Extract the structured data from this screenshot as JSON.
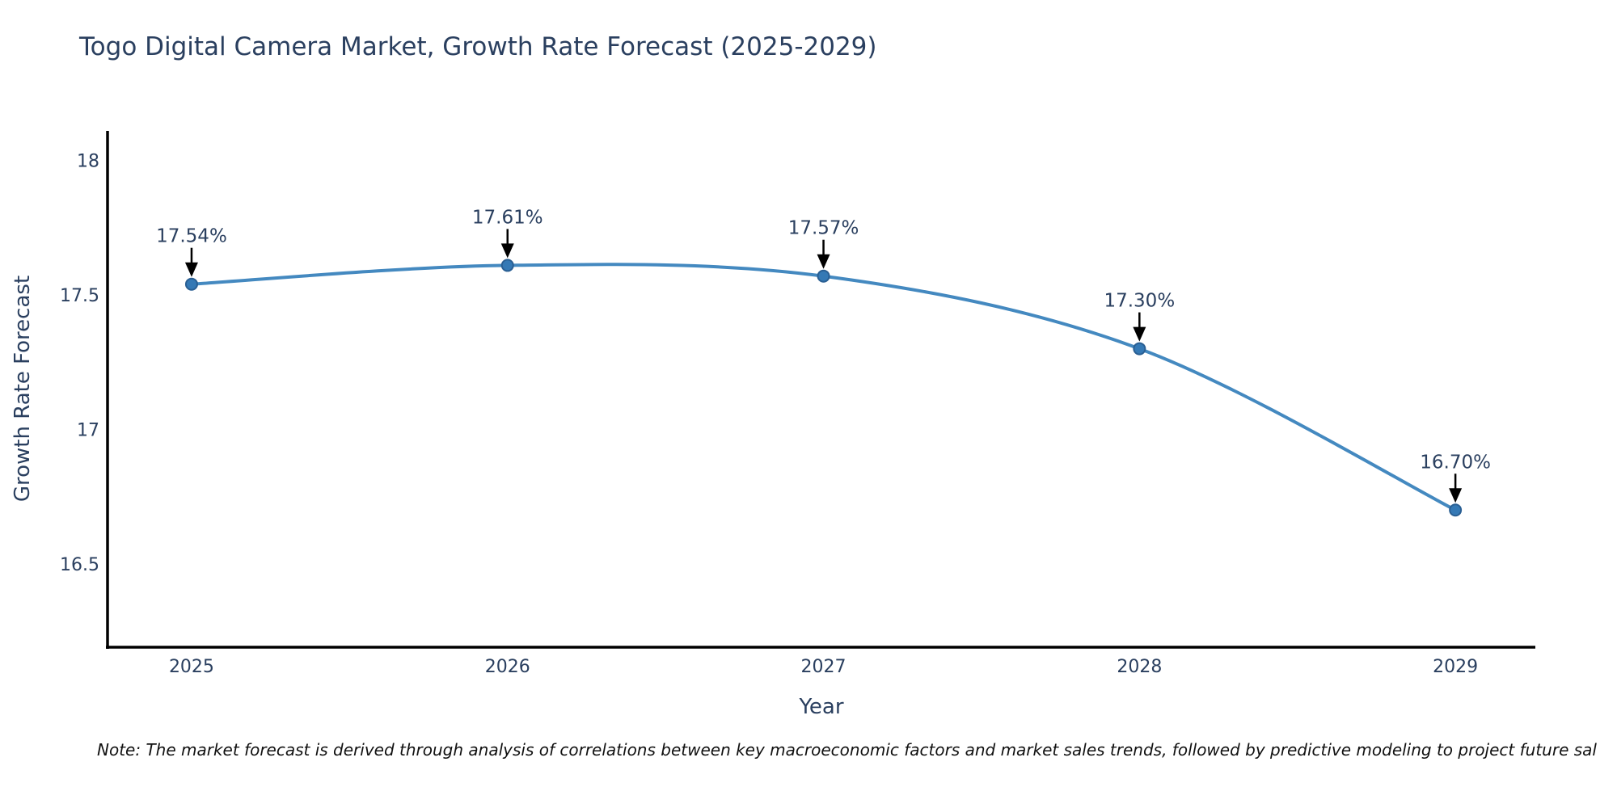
{
  "title": "Togo Digital Camera Market, Growth Rate Forecast (2025-2029)",
  "note": "Note: The market forecast is derived through analysis of correlations between key macroeconomic factors and market sales trends, followed by predictive modeling to project future sal",
  "colors": {
    "background": "#ffffff",
    "title_text": "#2a3f5f",
    "axis_text": "#2a3f5f",
    "axis_line": "#000000",
    "line": "#4489c0",
    "marker_fill": "#3579b5",
    "marker_edge": "#2a5f93",
    "annotation_text": "#2a3f5f",
    "arrow": "#000000",
    "note_text": "#111111"
  },
  "chart_data": {
    "type": "line",
    "title": "Togo Digital Camera Market, Growth Rate Forecast (2025-2029)",
    "xlabel": "Year",
    "ylabel": "Growth Rate Forecast",
    "x": [
      2025,
      2026,
      2027,
      2028,
      2029
    ],
    "series": [
      {
        "name": "Growth Rate Forecast",
        "values": [
          17.54,
          17.61,
          17.57,
          17.3,
          16.7
        ],
        "point_labels": [
          "17.54%",
          "17.61%",
          "17.57%",
          "17.30%",
          "16.70%"
        ]
      }
    ],
    "xtick_labels": [
      "2025",
      "2026",
      "2027",
      "2028",
      "2029"
    ],
    "ytick_values": [
      16.5,
      17,
      17.5,
      18
    ],
    "ytick_labels": [
      "16.5",
      "17",
      "17.5",
      "18"
    ],
    "xlim": [
      2024.734,
      2029.253
    ],
    "ylim": [
      16.19,
      18.11
    ],
    "grid": false,
    "legend_position": "none",
    "line_shape": "spline",
    "markers": true,
    "annotation_style": "value label above each point with black down-arrow"
  }
}
